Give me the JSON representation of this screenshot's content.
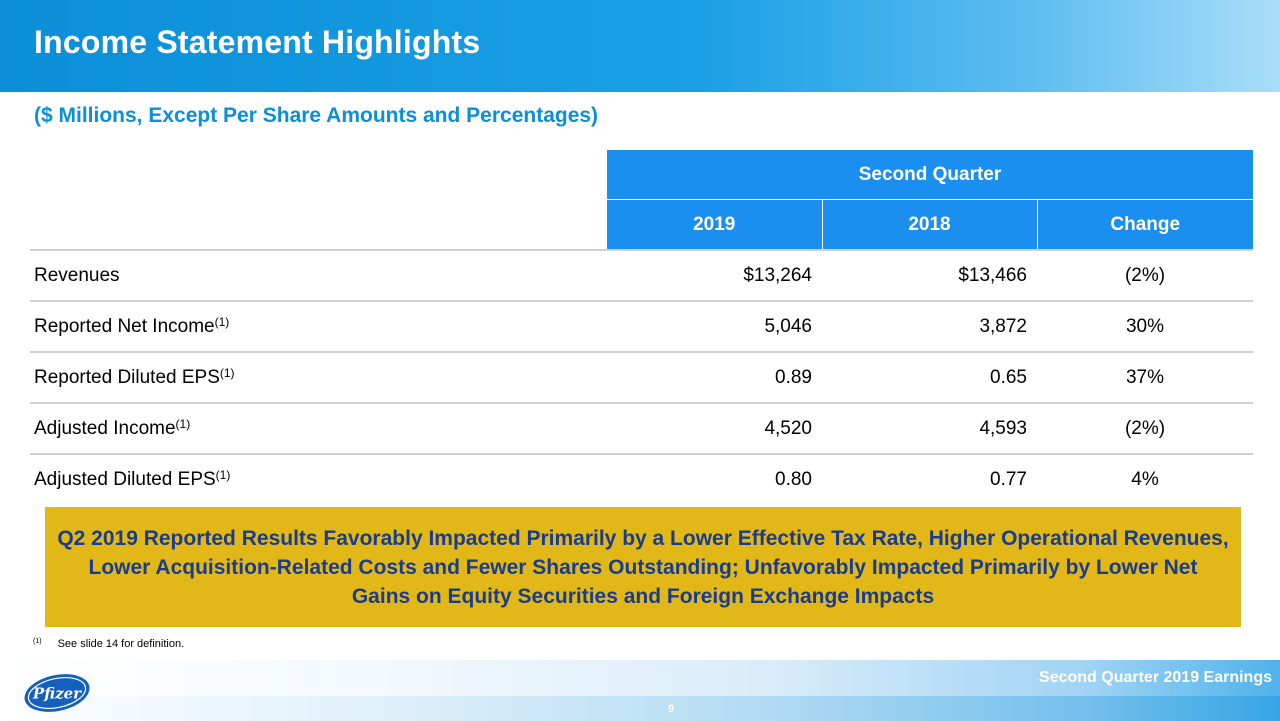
{
  "header": {
    "title": "Income Statement Highlights"
  },
  "subtitle": "($ Millions, Except Per Share Amounts and Percentages)",
  "table": {
    "group_header": "Second Quarter",
    "columns": [
      "2019",
      "2018",
      "Change"
    ],
    "rows": [
      {
        "label": "Revenues",
        "sup": "",
        "v2019": "$13,264",
        "v2018": "$13,466",
        "change": "(2%)"
      },
      {
        "label": "Reported Net Income",
        "sup": "(1)",
        "v2019": "5,046",
        "v2018": "3,872",
        "change": "30%"
      },
      {
        "label": "Reported Diluted EPS",
        "sup": "(1)",
        "v2019": "0.89",
        "v2018": "0.65",
        "change": "37%"
      },
      {
        "label": "Adjusted Income",
        "sup": "(1)",
        "v2019": "4,520",
        "v2018": "4,593",
        "change": "(2%)"
      },
      {
        "label": "Adjusted Diluted EPS",
        "sup": "(1)",
        "v2019": "0.80",
        "v2018": "0.77",
        "change": "4%"
      }
    ]
  },
  "callout": {
    "text": "Q2 2019 Reported Results Favorably Impacted Primarily by a Lower Effective Tax Rate, Higher Operational Revenues, Lower Acquisition-Related Costs and Fewer Shares Outstanding; Unfavorably Impacted Primarily by Lower Net Gains on Equity Securities and Foreign Exchange Impacts"
  },
  "footnote": {
    "mark": "(1)",
    "text": "See slide 14 for definition."
  },
  "footer": {
    "title": "Second Quarter 2019 Earnings",
    "page_number": "9",
    "logo_text": "Pfizer"
  },
  "colors": {
    "header_blue": "#0a8fd8",
    "table_header_blue": "#1a8fef",
    "callout_gold": "#e2b819",
    "callout_text_navy": "#1a3c8c"
  }
}
